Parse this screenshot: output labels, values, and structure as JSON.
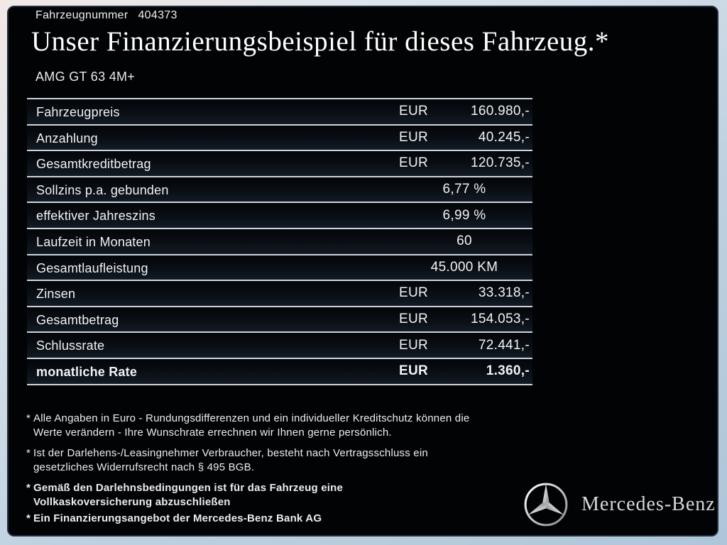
{
  "header": {
    "vehicle_number_label": "Fahrzeugnummer",
    "vehicle_number": "404373",
    "title": "Unser Finanzierungsbeispiel für dieses Fahrzeug.*",
    "model": "AMG GT 63 4M+"
  },
  "table": {
    "rows": [
      {
        "label": "Fahrzeugpreis",
        "align": "split",
        "currency": "EUR",
        "amount": "160.980,-"
      },
      {
        "label": "Anzahlung",
        "align": "split",
        "currency": "EUR",
        "amount": "40.245,-"
      },
      {
        "label": "Gesamtkreditbetrag",
        "align": "split",
        "currency": "EUR",
        "amount": "120.735,-"
      },
      {
        "label": "Sollzins p.a. gebunden",
        "align": "center",
        "value": "6,77 %"
      },
      {
        "label": "effektiver Jahreszins",
        "align": "center",
        "value": "6,99 %"
      },
      {
        "label": "Laufzeit in Monaten",
        "align": "center",
        "value": "60"
      },
      {
        "label": "Gesamtlaufleistung",
        "align": "center",
        "value": "45.000 KM"
      },
      {
        "label": "Zinsen",
        "align": "split",
        "currency": "EUR",
        "amount": "33.318,-"
      },
      {
        "label": "Gesamtbetrag",
        "align": "split",
        "currency": "EUR",
        "amount": "154.053,-"
      },
      {
        "label": "Schlussrate",
        "align": "split",
        "currency": "EUR",
        "amount": "72.441,-"
      },
      {
        "label": "monatliche Rate",
        "align": "split",
        "currency": "EUR",
        "amount": "1.360,-",
        "bold": true
      }
    ]
  },
  "footnotes": [
    {
      "marker": "*",
      "bold": false,
      "lines": [
        "Alle Angaben in Euro - Rundungsdifferenzen und ein individueller Kreditschutz können die",
        "Werte verändern - Ihre Wunschrate errechnen wir Ihnen gerne persönlich."
      ]
    },
    {
      "marker": "*",
      "bold": false,
      "lines": [
        "Ist der Darlehens-/Leasingnehmer Verbraucher, besteht nach Vertragsschluss ein",
        "gesetzliches Widerrufsrecht nach § 495 BGB."
      ]
    },
    {
      "marker": "*",
      "bold": true,
      "lines": [
        "Gemäß den Darlehnsbedingungen ist für das Fahrzeug eine",
        "Vollkaskoversicherung abzuschließen"
      ]
    },
    {
      "marker": "*",
      "bold": true,
      "lines": [
        "Ein Finanzierungsangebot der Mercedes-Benz Bank AG"
      ]
    }
  ],
  "brand": {
    "logo_icon": "mercedes-star-icon",
    "name": "Mercedes-Benz"
  },
  "colors": {
    "frame_light": "#f2e9e5",
    "frame_blue": "#aec6d8",
    "panel_bg": "#020304",
    "panel_border": "#223042",
    "separator": "#ccd5dd",
    "text_light": "#f1f3f4",
    "row_grad_top": "#030508",
    "row_grad_bottom": "#131a24",
    "silver": "#d8d8d8"
  }
}
